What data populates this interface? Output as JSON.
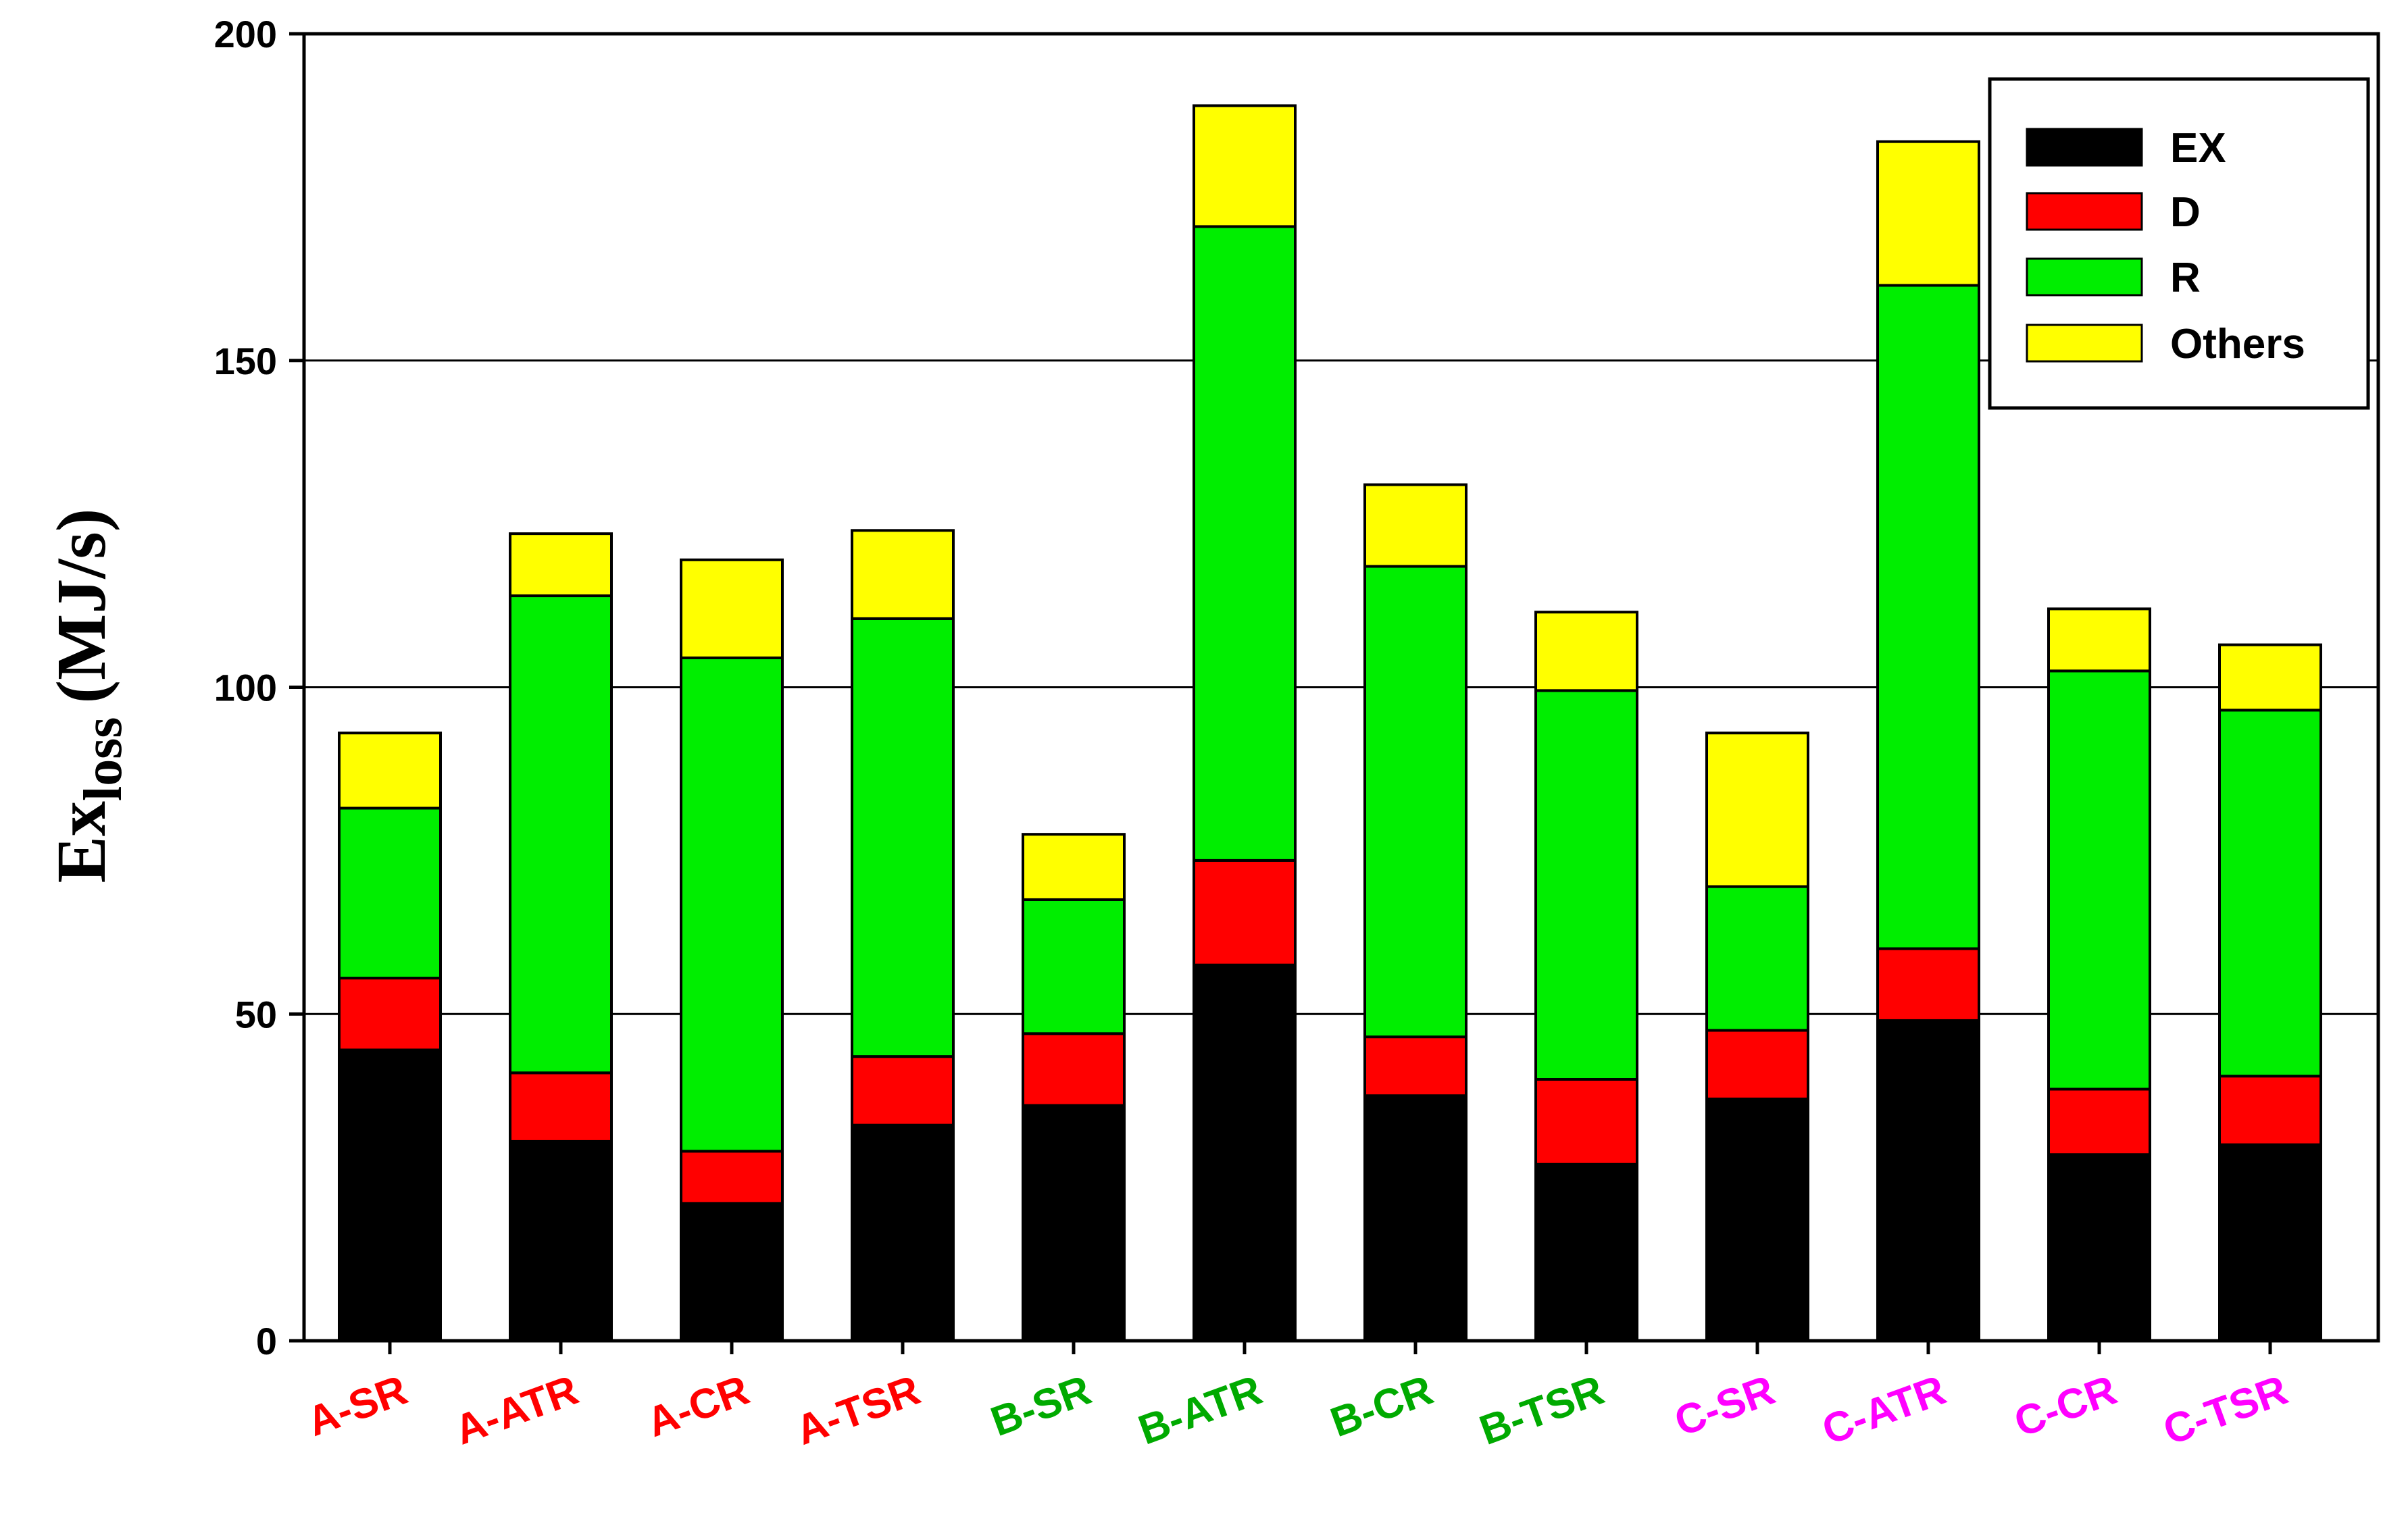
{
  "chart_data": {
    "type": "bar",
    "stacked": true,
    "categories": [
      "A-SR",
      "A-ATR",
      "A-CR",
      "A-TSR",
      "B-SR",
      "B-ATR",
      "B-CR",
      "B-TSR",
      "C-SR",
      "C-ATR",
      "C-CR",
      "C-TSR"
    ],
    "category_colors": [
      "#ff0000",
      "#ff0000",
      "#ff0000",
      "#ff0000",
      "#00aa00",
      "#00aa00",
      "#00aa00",
      "#00aa00",
      "#ff00ff",
      "#ff00ff",
      "#ff00ff",
      "#ff00ff"
    ],
    "series": [
      {
        "name": "EX",
        "color": "#000000",
        "values": [
          44.5,
          30.5,
          21,
          33,
          36,
          57.5,
          37.5,
          27,
          37,
          49,
          28.5,
          30
        ]
      },
      {
        "name": "D",
        "color": "#ff0000",
        "values": [
          11,
          10.5,
          8,
          10.5,
          11,
          16,
          9,
          13,
          10.5,
          11,
          10,
          10.5
        ]
      },
      {
        "name": "R",
        "color": "#00ee00",
        "values": [
          26,
          73,
          75.5,
          67,
          20.5,
          97,
          72,
          59.5,
          22,
          101.5,
          64,
          56
        ]
      },
      {
        "name": "Others",
        "color": "#ffff00",
        "values": [
          11.5,
          9.5,
          15,
          13.5,
          10,
          18.5,
          12.5,
          12,
          23.5,
          22,
          9.5,
          10
        ]
      }
    ],
    "ylabel": "Ex",
    "ylabel_subscript": "loss",
    "ylabel_unit": "(MJ/s)",
    "ylim": [
      0,
      200
    ],
    "yticks": [
      "0",
      "50",
      "100",
      "150",
      "200"
    ],
    "grid": true,
    "legend_position": "top-right"
  }
}
